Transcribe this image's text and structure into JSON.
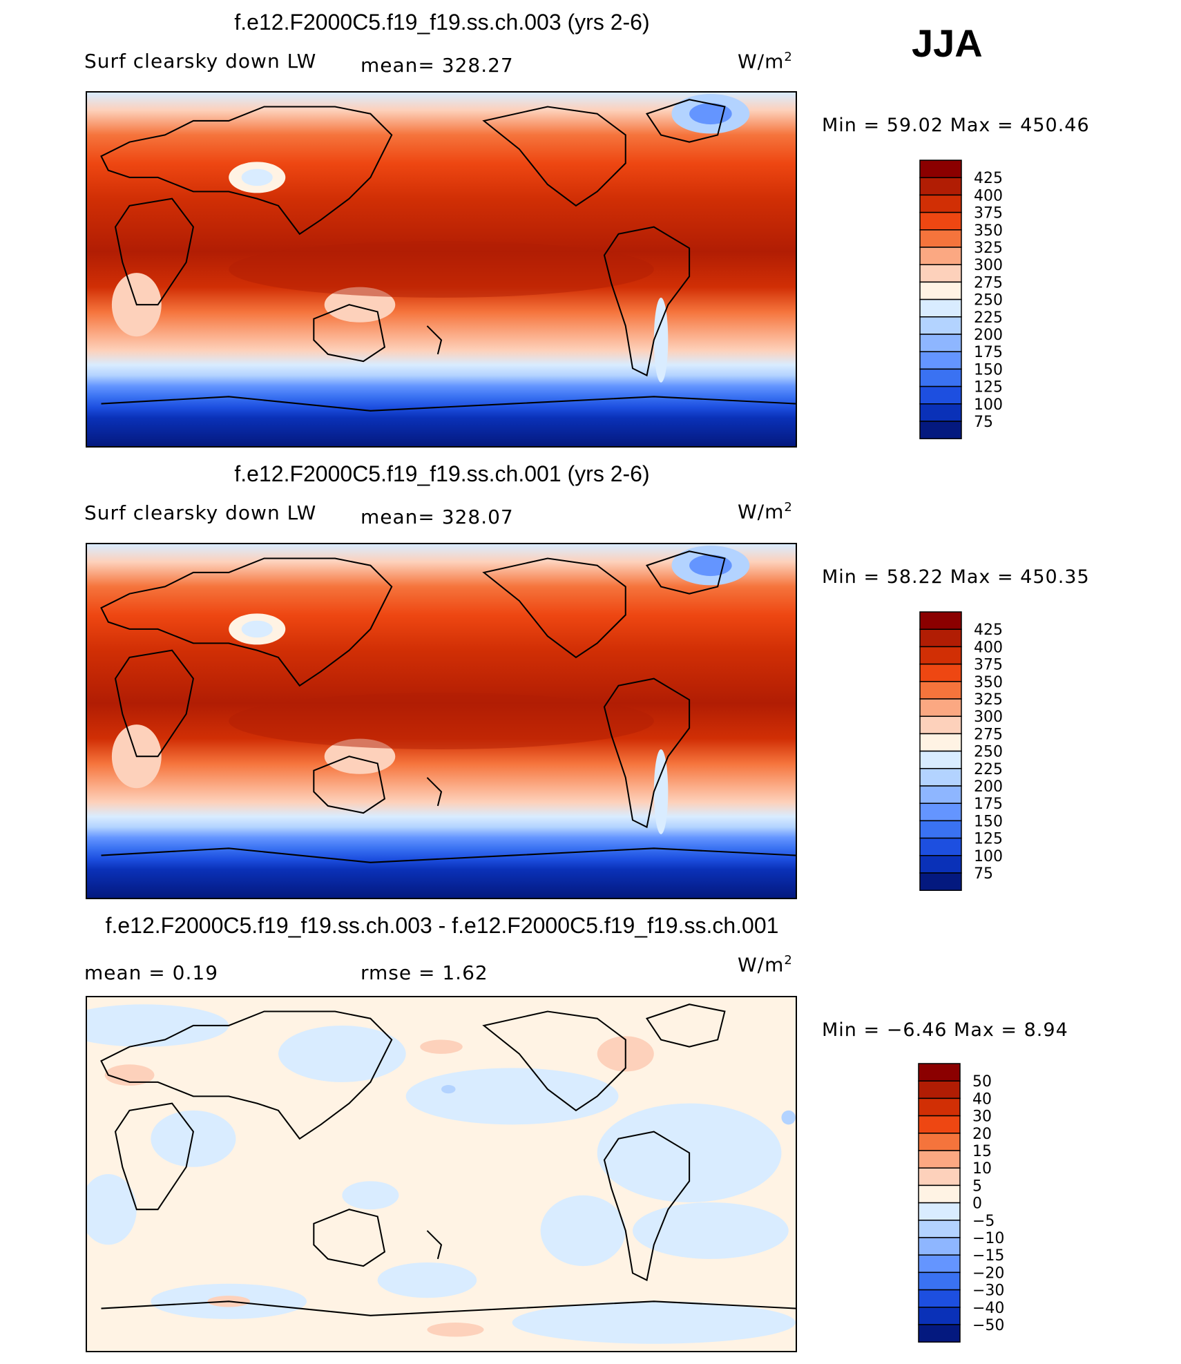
{
  "season": "JJA",
  "panels": [
    {
      "title": "f.e12.F2000C5.f19_f19.ss.ch.003 (yrs 2-6)",
      "left_label": "Surf clearsky down LW",
      "mid_label": "mean=  328.27",
      "units": "W/m",
      "units_sup": "2",
      "minmax": "Min =   59.02  Max =  450.46",
      "colorbar": {
        "colors": [
          "#8b0000",
          "#b11d04",
          "#d12f05",
          "#ee4712",
          "#f5743c",
          "#fba882",
          "#fdd1bb",
          "#fff3e4",
          "#d9ecff",
          "#b3d3ff",
          "#8eb6ff",
          "#6495ff",
          "#3a72f2",
          "#1d4fe0",
          "#0a31b8",
          "#04197f"
        ],
        "labels": [
          "425",
          "400",
          "375",
          "350",
          "325",
          "300",
          "275",
          "250",
          "225",
          "200",
          "175",
          "150",
          "125",
          "100",
          "75"
        ]
      }
    },
    {
      "title": "f.e12.F2000C5.f19_f19.ss.ch.001 (yrs 2-6)",
      "left_label": "Surf clearsky down LW",
      "mid_label": "mean=  328.07",
      "units": "W/m",
      "units_sup": "2",
      "minmax": "Min =   58.22  Max =  450.35",
      "colorbar": {
        "colors": [
          "#8b0000",
          "#b11d04",
          "#d12f05",
          "#ee4712",
          "#f5743c",
          "#fba882",
          "#fdd1bb",
          "#fff3e4",
          "#d9ecff",
          "#b3d3ff",
          "#8eb6ff",
          "#6495ff",
          "#3a72f2",
          "#1d4fe0",
          "#0a31b8",
          "#04197f"
        ],
        "labels": [
          "425",
          "400",
          "375",
          "350",
          "325",
          "300",
          "275",
          "250",
          "225",
          "200",
          "175",
          "150",
          "125",
          "100",
          "75"
        ]
      }
    },
    {
      "title": "f.e12.F2000C5.f19_f19.ss.ch.003 - f.e12.F2000C5.f19_f19.ss.ch.001",
      "left_label": "mean =    0.19",
      "mid_label": "rmse =    1.62",
      "units": "W/m",
      "units_sup": "2",
      "minmax": "Min =  −6.46  Max =     8.94",
      "colorbar": {
        "colors": [
          "#8b0000",
          "#b11d04",
          "#d12f05",
          "#ee4712",
          "#f5743c",
          "#fba882",
          "#fdd1bb",
          "#fff3e4",
          "#d9ecff",
          "#b3d3ff",
          "#8eb6ff",
          "#6495ff",
          "#3a72f2",
          "#1d4fe0",
          "#0a31b8",
          "#04197f"
        ],
        "labels": [
          "50",
          "40",
          "30",
          "20",
          "15",
          "10",
          "5",
          "0",
          "−5",
          "−10",
          "−15",
          "−20",
          "−30",
          "−40",
          "−50"
        ]
      }
    }
  ],
  "chart_data": [
    {
      "type": "heatmap",
      "title": "f.e12.F2000C5.f19_f19.ss.ch.003 (yrs 2-6)",
      "variable": "Surf clearsky down LW",
      "units": "W/m2",
      "mean": 328.27,
      "min": 59.02,
      "max": 450.46,
      "levels": [
        75,
        100,
        125,
        150,
        175,
        200,
        225,
        250,
        275,
        300,
        325,
        350,
        375,
        400,
        425
      ]
    },
    {
      "type": "heatmap",
      "title": "f.e12.F2000C5.f19_f19.ss.ch.001 (yrs 2-6)",
      "variable": "Surf clearsky down LW",
      "units": "W/m2",
      "mean": 328.07,
      "min": 58.22,
      "max": 450.35,
      "levels": [
        75,
        100,
        125,
        150,
        175,
        200,
        225,
        250,
        275,
        300,
        325,
        350,
        375,
        400,
        425
      ]
    },
    {
      "type": "heatmap",
      "title": "f.e12.F2000C5.f19_f19.ss.ch.003 - f.e12.F2000C5.f19_f19.ss.ch.001",
      "units": "W/m2",
      "mean": 0.19,
      "rmse": 1.62,
      "min": -6.46,
      "max": 8.94,
      "levels": [
        -50,
        -40,
        -30,
        -20,
        -15,
        -10,
        -5,
        0,
        5,
        10,
        15,
        20,
        30,
        40,
        50
      ]
    }
  ]
}
